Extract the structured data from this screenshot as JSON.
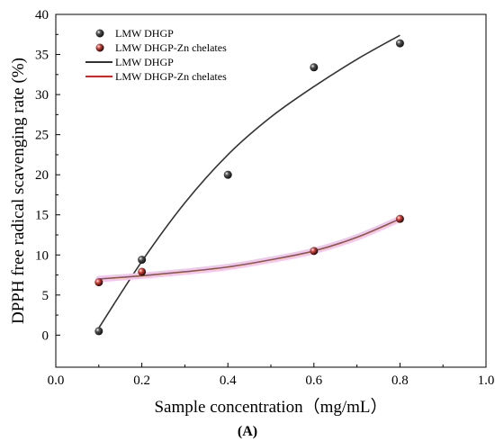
{
  "chart_data": {
    "type": "scatter",
    "xlabel": "Sample concentration（mg/mL）",
    "ylabel": "DPPH free radical scavenging rate (%)",
    "panel_label": "(A)",
    "xlim": [
      0.0,
      1.0
    ],
    "ylim": [
      -4,
      40
    ],
    "x_ticks": [
      0.0,
      0.2,
      0.4,
      0.6,
      0.8,
      1.0
    ],
    "x_tick_labels": [
      "0.0",
      "0.2",
      "0.4",
      "0.6",
      "0.8",
      "1.0"
    ],
    "y_ticks": [
      0,
      5,
      10,
      15,
      20,
      25,
      30,
      35,
      40
    ],
    "y_tick_labels": [
      "0",
      "5",
      "10",
      "15",
      "20",
      "25",
      "30",
      "35",
      "40"
    ],
    "grid": false,
    "legend_position": "top-left",
    "series": [
      {
        "name": "LMW DHGP",
        "kind": "points",
        "color": "#555555",
        "x": [
          0.1,
          0.2,
          0.4,
          0.6,
          0.8
        ],
        "y": [
          0.5,
          9.4,
          20.0,
          33.4,
          36.4
        ]
      },
      {
        "name": "LMW DHGP-Zn chelates",
        "kind": "points",
        "color": "#e0443c",
        "x": [
          0.1,
          0.2,
          0.6,
          0.8
        ],
        "y": [
          6.6,
          7.9,
          10.5,
          14.5
        ]
      },
      {
        "name": "LMW DHGP",
        "kind": "fit",
        "color": "#333333",
        "x": [
          0.1,
          0.2,
          0.3,
          0.4,
          0.5,
          0.6,
          0.7,
          0.8
        ],
        "y": [
          0.9,
          9.2,
          16.5,
          22.5,
          27.2,
          31.0,
          34.4,
          37.4
        ]
      },
      {
        "name": "LMW DHGP-Zn chelates",
        "kind": "fit",
        "color": "#e02020",
        "x": [
          0.1,
          0.2,
          0.3,
          0.4,
          0.5,
          0.6,
          0.7,
          0.8
        ],
        "y": [
          7.0,
          7.4,
          7.9,
          8.5,
          9.4,
          10.5,
          12.2,
          14.5
        ]
      }
    ]
  }
}
